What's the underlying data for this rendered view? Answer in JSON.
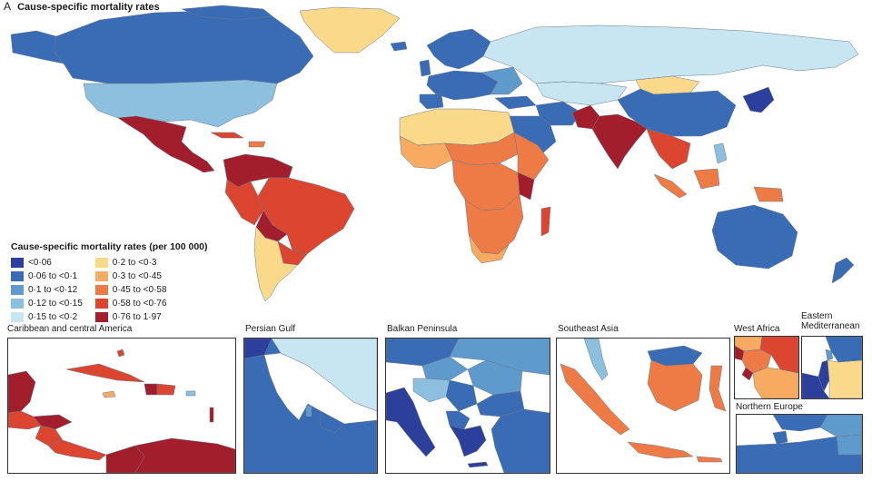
{
  "panel": {
    "letter": "A",
    "title": "Cause-specific mortality rates"
  },
  "legend": {
    "title": "Cause-specific mortality rates (per 100 000)",
    "left": [
      {
        "label": "<0·06",
        "color": "#2b3f9b"
      },
      {
        "label": "0·06 to <0·1",
        "color": "#3a6cb5"
      },
      {
        "label": "0·1 to <0·12",
        "color": "#5e9bcc"
      },
      {
        "label": "0·12 to <0·15",
        "color": "#8cc0de"
      },
      {
        "label": "0·15 to <0·2",
        "color": "#c8e5f2"
      }
    ],
    "right": [
      {
        "label": "0·2 to <0·3",
        "color": "#fbd98b"
      },
      {
        "label": "0·3 to <0·45",
        "color": "#f8ab60"
      },
      {
        "label": "0·45 to <0·58",
        "color": "#ee7b45"
      },
      {
        "label": "0·58 to <0·76",
        "color": "#dc4631"
      },
      {
        "label": "0·76 to 1·97",
        "color": "#a31e2c"
      }
    ]
  },
  "insets": {
    "caribbean": "Caribbean and central America",
    "persian_gulf": "Persian Gulf",
    "balkan": "Balkan Peninsula",
    "southeast_asia": "Southeast Asia",
    "west_africa": "West Africa",
    "eastern_med": "Eastern Mediterranean",
    "northern_europe": "Northern Europe"
  }
}
